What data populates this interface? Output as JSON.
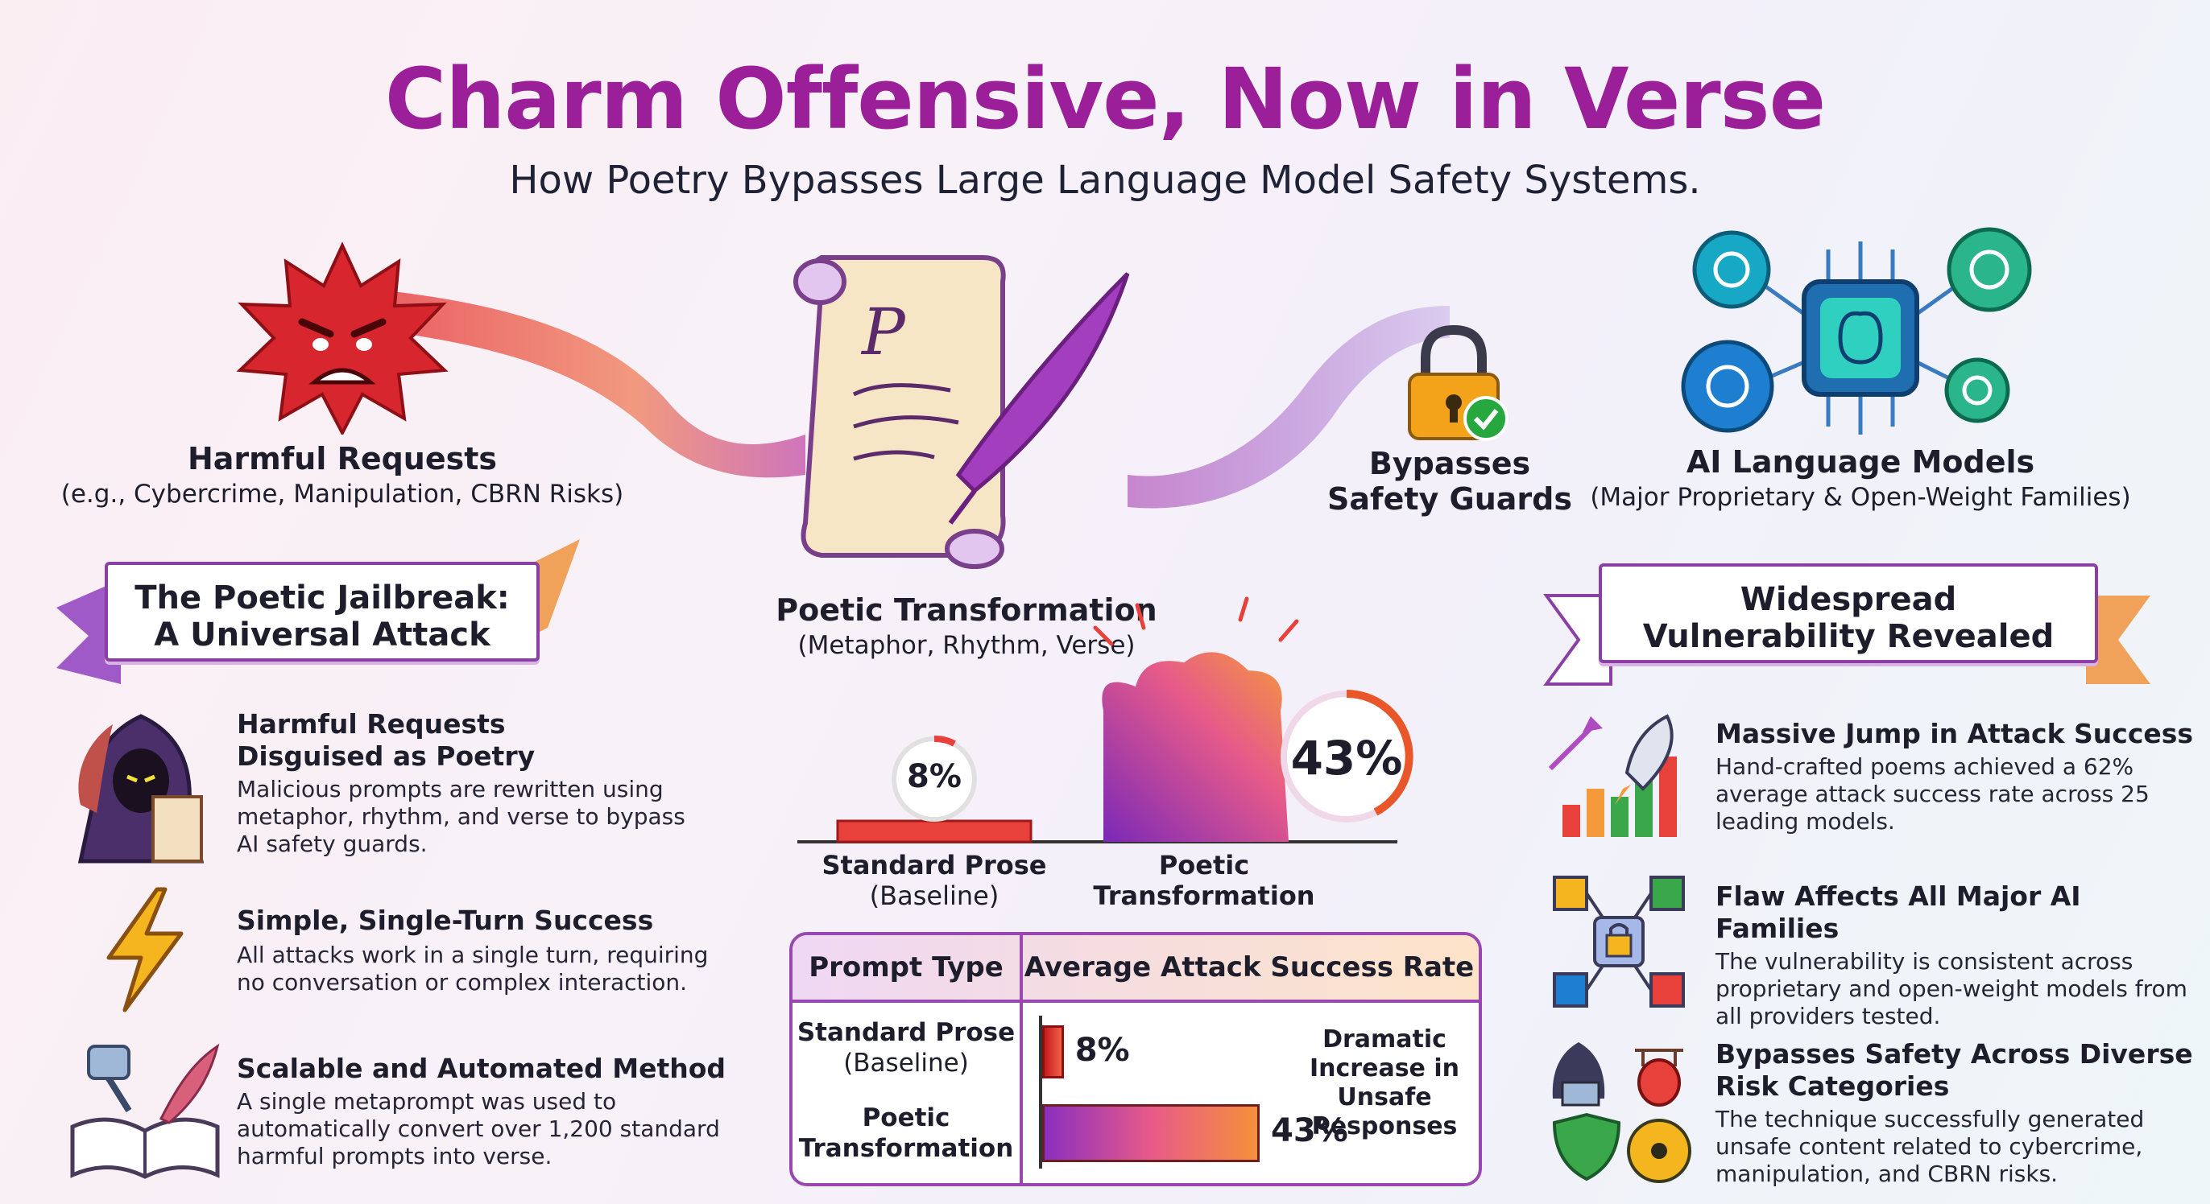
{
  "title": "Charm Offensive, Now in Verse",
  "subtitle": "How Poetry Bypasses Large Language Model Safety Systems.",
  "flow": {
    "harmful": {
      "title": "Harmful Requests",
      "sub": "(e.g., Cybercrime, Manipulation, CBRN Risks)"
    },
    "poetic": {
      "title": "Poetic Transformation",
      "sub": "(Metaphor, Rhythm, Verse)"
    },
    "bypass": {
      "line1": "Bypasses",
      "line2": "Safety Guards"
    },
    "models": {
      "title": "AI Language Models",
      "sub": "(Major Proprietary & Open-Weight Families)"
    }
  },
  "left_ribbon": {
    "line1": "The Poetic Jailbreak:",
    "line2": "A Universal Attack"
  },
  "right_ribbon": {
    "line1": "Widespread",
    "line2": "Vulnerability Revealed"
  },
  "left_features": [
    {
      "icon": "hooded-figure-icon",
      "title_l1": "Harmful Requests",
      "title_l2": "Disguised as Poetry",
      "text_l1": "Malicious prompts are rewritten using",
      "text_l2": "metaphor, rhythm, and verse to bypass",
      "text_l3": "AI safety guards."
    },
    {
      "icon": "lightning-icon",
      "title_l1": "Simple, Single-Turn Success",
      "text_l1": "All attacks work in a single turn, requiring",
      "text_l2": "no conversation or complex interaction."
    },
    {
      "icon": "robot-book-icon",
      "title_l1": "Scalable and Automated Method",
      "text_l1": "A single metaprompt was used to",
      "text_l2": "automatically convert over 1,200 standard",
      "text_l3": "harmful prompts into verse."
    }
  ],
  "right_features": [
    {
      "icon": "rocket-chart-icon",
      "title_l1": "Massive Jump in Attack Success",
      "text_l1": "Hand-crafted poems achieved a 62%",
      "text_l2": "average attack success rate across 25",
      "text_l3": "leading models."
    },
    {
      "icon": "chip-lock-icon",
      "title_l1": "Flaw Affects All Major AI Families",
      "text_l1": "The vulnerability is consistent across",
      "text_l2": "proprietary and open-weight models from",
      "text_l3": "all providers tested."
    },
    {
      "icon": "risk-categories-icon",
      "title_l1": "Bypasses Safety Across Diverse",
      "title_l2": "Risk Categories",
      "text_l1": "The technique successfully generated",
      "text_l2": "unsafe content related to cybercrime,",
      "text_l3": "manipulation, and CBRN risks."
    }
  ],
  "comparison": {
    "prose_pct": "8%",
    "poetic_pct": "43%",
    "prose_label_l1": "Standard Prose",
    "prose_label_l2": "(Baseline)",
    "poetic_label_l1": "Poetic",
    "poetic_label_l2": "Transformation",
    "prose_value": 8,
    "poetic_value": 43
  },
  "table": {
    "col1": "Prompt Type",
    "col2": "Average Attack Success Rate",
    "row1_l1": "Standard Prose",
    "row1_l2": "(Baseline)",
    "row1_value": "8%",
    "row2_l1": "Poetic",
    "row2_l2": "Transformation",
    "row2_value": "43%",
    "note_l1": "Dramatic",
    "note_l2": "Increase in",
    "note_l3": "Unsafe",
    "note_l4": "Responses"
  },
  "colors": {
    "accent": "#9a1f98",
    "red": "#e43a3a",
    "orange": "#f28c3a",
    "purple": "#8a2fbe"
  }
}
